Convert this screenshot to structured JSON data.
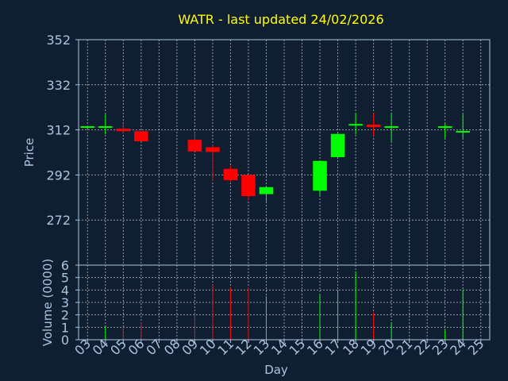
{
  "chart_data": [
    {
      "type": "candlestick",
      "title": "WATR - last updated 24/02/2026",
      "ylabel": "Price",
      "ylim": [
        252,
        352
      ],
      "yticks": [
        352,
        332,
        312,
        292,
        272
      ],
      "grid": true,
      "colors": {
        "up": "#00ff00",
        "down": "#ff0000",
        "title": "#ffff00",
        "text": "#aac4e0",
        "grid": "#ffffff",
        "axis": "#aac4e0",
        "background": "#0f1f31"
      },
      "candles": [
        {
          "day": "03",
          "open": 313.2,
          "high": 313.5,
          "low": 312.6,
          "close": 313.6
        },
        {
          "day": "04",
          "open": 313.2,
          "high": 318.9,
          "low": 310.0,
          "close": 313.6
        },
        {
          "day": "05",
          "open": 312.5,
          "high": 314.9,
          "low": 310.3,
          "close": 311.4
        },
        {
          "day": "06",
          "open": 311.4,
          "high": 311.4,
          "low": 306.9,
          "close": 306.9
        },
        {
          "day": "09",
          "open": 307.6,
          "high": 311.4,
          "low": 302.4,
          "close": 302.4
        },
        {
          "day": "10",
          "open": 304.3,
          "high": 305.5,
          "low": 289.2,
          "close": 302.2
        },
        {
          "day": "11",
          "open": 294.7,
          "high": 296.1,
          "low": 289.0,
          "close": 289.7
        },
        {
          "day": "12",
          "open": 292.0,
          "high": 292.0,
          "low": 280.6,
          "close": 282.6
        },
        {
          "day": "13",
          "open": 283.5,
          "high": 286.8,
          "low": 280.3,
          "close": 286.6
        },
        {
          "day": "16",
          "open": 285.0,
          "high": 298.2,
          "low": 282.9,
          "close": 298.2
        },
        {
          "day": "17",
          "open": 299.9,
          "high": 310.6,
          "low": 299.9,
          "close": 310.2
        },
        {
          "day": "18",
          "open": 314.1,
          "high": 319.4,
          "low": 310.0,
          "close": 314.6
        },
        {
          "day": "19",
          "open": 314.3,
          "high": 319.4,
          "low": 309.3,
          "close": 313.2
        },
        {
          "day": "20",
          "open": 313.2,
          "high": 319.4,
          "low": 306.9,
          "close": 313.6
        },
        {
          "day": "23",
          "open": 313.2,
          "high": 314.6,
          "low": 308.3,
          "close": 313.6
        },
        {
          "day": "24",
          "open": 311.3,
          "high": 319.0,
          "low": 308.3,
          "close": 311.5
        }
      ]
    },
    {
      "type": "bar",
      "ylabel": "Volume (0000)",
      "xlabel": "Day",
      "ylim": [
        0,
        6
      ],
      "yticks": [
        0,
        1,
        2,
        3,
        4,
        5,
        6
      ],
      "grid": true,
      "categories": [
        "03",
        "04",
        "05",
        "06",
        "07",
        "08",
        "09",
        "10",
        "11",
        "12",
        "13",
        "14",
        "15",
        "16",
        "17",
        "18",
        "19",
        "20",
        "21",
        "22",
        "23",
        "24",
        "25"
      ],
      "bars": [
        {
          "day": "04",
          "value": 1.1,
          "direction": "up"
        },
        {
          "day": "05",
          "value": 1.0,
          "direction": "down"
        },
        {
          "day": "06",
          "value": 1.4,
          "direction": "down"
        },
        {
          "day": "09",
          "value": 2.1,
          "direction": "down"
        },
        {
          "day": "10",
          "value": 4.4,
          "direction": "down"
        },
        {
          "day": "11",
          "value": 4.2,
          "direction": "down"
        },
        {
          "day": "12",
          "value": 4.2,
          "direction": "down"
        },
        {
          "day": "13",
          "value": 3.5,
          "direction": "up"
        },
        {
          "day": "16",
          "value": 3.7,
          "direction": "up"
        },
        {
          "day": "17",
          "value": 4.0,
          "direction": "up"
        },
        {
          "day": "18",
          "value": 5.5,
          "direction": "up"
        },
        {
          "day": "19",
          "value": 2.2,
          "direction": "down"
        },
        {
          "day": "20",
          "value": 1.4,
          "direction": "up"
        },
        {
          "day": "23",
          "value": 0.8,
          "direction": "up"
        },
        {
          "day": "24",
          "value": 4.0,
          "direction": "up"
        }
      ]
    }
  ]
}
